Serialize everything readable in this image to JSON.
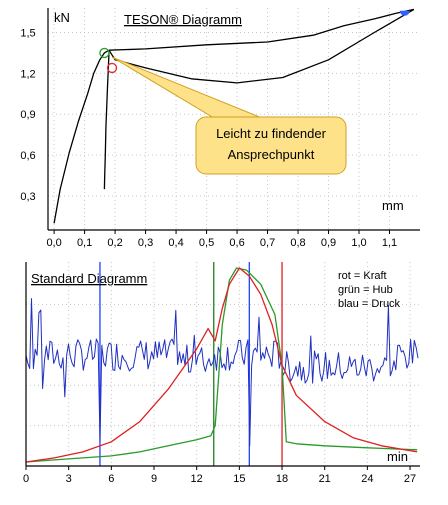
{
  "chart_data": [
    {
      "type": "line",
      "title": "TESON® Diagramm",
      "ylabel": "kN",
      "xlabel": "mm",
      "xlim": [
        -0.02,
        1.2
      ],
      "ylim": [
        0.05,
        1.68
      ],
      "x_ticks": [
        "0,0",
        "0,1",
        "0,2",
        "0,3",
        "0,4",
        "0,5",
        "0,6",
        "0,7",
        "0,8",
        "0,9",
        "1,0",
        "1,1"
      ],
      "y_ticks": [
        "1,5",
        "1,2",
        "0,9",
        "0,6",
        "0,3"
      ],
      "y_tick_values": [
        1.5,
        1.2,
        0.9,
        0.6,
        0.3
      ],
      "grid": true,
      "annotation": {
        "lines": [
          "Leicht zu findender",
          "Ansprechpunkt"
        ],
        "color": "#fde28a",
        "points_to": [
          0.19,
          1.32
        ]
      },
      "markers": [
        {
          "x": 0.165,
          "y": 1.35,
          "color": "#2ca02c",
          "shape": "circle"
        },
        {
          "x": 0.19,
          "y": 1.24,
          "color": "#e03030",
          "shape": "circle"
        },
        {
          "x": 1.15,
          "y": 1.66,
          "color": "#3060ff",
          "shape": "half-circle"
        }
      ],
      "series": [
        {
          "color": "#000000",
          "x": [
            0.0,
            0.02,
            0.05,
            0.08,
            0.11,
            0.13,
            0.15,
            0.165,
            0.18
          ],
          "y": [
            0.1,
            0.35,
            0.62,
            0.85,
            1.05,
            1.2,
            1.3,
            1.35,
            1.37
          ]
        },
        {
          "color": "#000000",
          "x": [
            0.18,
            0.3,
            0.5,
            0.7,
            0.85,
            0.95,
            1.05,
            1.12,
            1.18
          ],
          "y": [
            1.37,
            1.38,
            1.41,
            1.43,
            1.48,
            1.55,
            1.6,
            1.64,
            1.67
          ]
        },
        {
          "color": "#000000",
          "x": [
            1.18,
            1.05,
            0.9,
            0.75,
            0.6,
            0.45,
            0.3,
            0.2,
            0.18
          ],
          "y": [
            1.67,
            1.5,
            1.3,
            1.17,
            1.13,
            1.16,
            1.24,
            1.3,
            1.37
          ]
        },
        {
          "color": "#000000",
          "x": [
            0.18,
            0.175,
            0.17,
            0.168,
            0.166,
            0.165
          ],
          "y": [
            1.35,
            1.1,
            0.8,
            0.6,
            0.45,
            0.35
          ]
        }
      ]
    },
    {
      "type": "line",
      "title": "Standard Diagramm",
      "xlabel": "min",
      "xlim": [
        0,
        27.7
      ],
      "ylim": [
        0,
        1
      ],
      "x_ticks": [
        "0",
        "3",
        "6",
        "9",
        "12",
        "15",
        "18",
        "21",
        "24",
        "27"
      ],
      "x_tick_values": [
        0,
        3,
        6,
        9,
        12,
        15,
        18,
        21,
        24,
        27
      ],
      "grid": true,
      "legend_lines": [
        "rot = Kraft",
        "grün = Hub",
        "blau = Druck"
      ],
      "vertical_lines": [
        {
          "x": 5.2,
          "color": "#2040ff"
        },
        {
          "x": 13.2,
          "color": "#208020"
        },
        {
          "x": 15.7,
          "color": "#2040ff"
        },
        {
          "x": 18.0,
          "color": "#e02020"
        }
      ],
      "series": [
        {
          "name": "Kraft",
          "color": "#e02020",
          "x": [
            0,
            2,
            4,
            6,
            8,
            10,
            11,
            12,
            12.8,
            13.3,
            13.8,
            14.3,
            15,
            15.7,
            16.5,
            17.3,
            18,
            19,
            21,
            23,
            25,
            27.5
          ],
          "y": [
            0.02,
            0.04,
            0.07,
            0.12,
            0.22,
            0.38,
            0.48,
            0.58,
            0.68,
            0.62,
            0.78,
            0.9,
            0.98,
            0.94,
            0.85,
            0.7,
            0.5,
            0.35,
            0.22,
            0.14,
            0.1,
            0.07
          ]
        },
        {
          "name": "Hub",
          "color": "#2a9a2a",
          "x": [
            0,
            2,
            4,
            6,
            8,
            10,
            12,
            13,
            13.3,
            13.8,
            14.3,
            14.8,
            15.5,
            16.5,
            17.5,
            18,
            18.3,
            19,
            21,
            24,
            27.5
          ],
          "y": [
            0.02,
            0.03,
            0.04,
            0.05,
            0.07,
            0.1,
            0.13,
            0.15,
            0.2,
            0.7,
            0.92,
            0.98,
            0.97,
            0.9,
            0.75,
            0.5,
            0.12,
            0.11,
            0.1,
            0.09,
            0.08
          ]
        },
        {
          "name": "Druck",
          "color": "#2030c0",
          "baseline": 0.55,
          "amplitude": 0.08
        }
      ]
    }
  ]
}
